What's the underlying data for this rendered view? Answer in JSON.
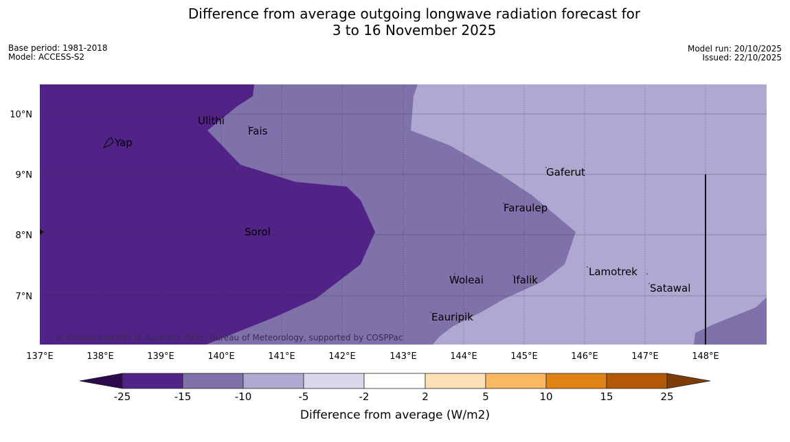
{
  "title": {
    "line1": "Difference from average outgoing longwave radiation forecast for",
    "line2": "3 to 16 November 2025"
  },
  "meta": {
    "base_period": "Base period: 1981-2018",
    "model": "Model: ACCESS-S2",
    "model_run": "Model run: 20/10/2025",
    "issued": "Issued: 22/10/2025"
  },
  "map": {
    "lon_labels": [
      "137°E",
      "138°E",
      "139°E",
      "140°E",
      "141°E",
      "142°E",
      "143°E",
      "144°E",
      "145°E",
      "146°E",
      "147°E",
      "148°E"
    ],
    "lat_labels": [
      "10°N",
      "9°N",
      "8°N",
      "7°N"
    ],
    "places": [
      "Yap",
      "Ulithi",
      "Fais",
      "Gaferut",
      "Faraulep",
      "Sorol",
      "Lamotrek",
      "Woleai",
      "Ifalik",
      "Satawal",
      "Eauripik"
    ],
    "copyright": "© Commonwealth of Australia 2025, Bureau of Meteorology, supported by COSPPac"
  },
  "colorbar": {
    "ticks": [
      "-25",
      "-15",
      "-10",
      "-5",
      "-2",
      "2",
      "5",
      "10",
      "15",
      "25"
    ],
    "label": "Difference from average (W/m2)",
    "colors": [
      "#2d0a4e",
      "#512386",
      "#7f72aa",
      "#afa8d0",
      "#d9d9eb",
      "#ffffff",
      "#fee0b6",
      "#fbb862",
      "#e08214",
      "#b35806",
      "#7f3b08"
    ]
  }
}
